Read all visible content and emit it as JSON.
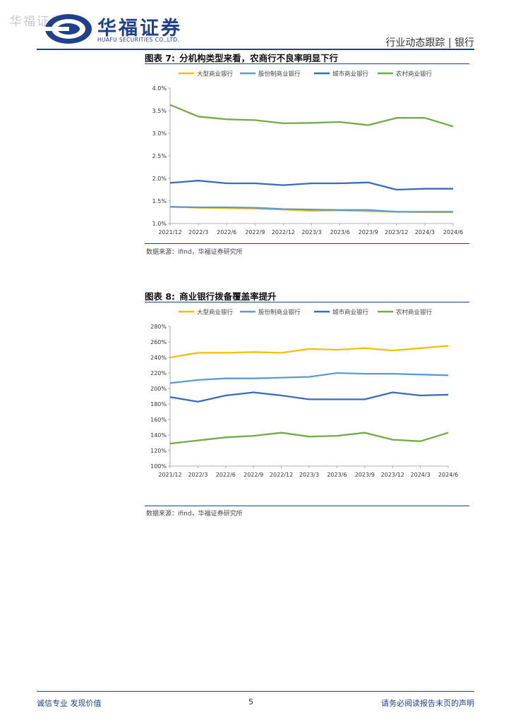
{
  "header": {
    "watermark": "华福证券",
    "logo_cn": "华福证券",
    "logo_en": "HUAFU SECURITIES CO.,LTD.",
    "right_text": "行业动态跟踪 | 银行"
  },
  "figures": [
    {
      "number": "图表 7:",
      "title": "分机构类型来看，农商行不良率明显下行",
      "source": "数据来源：ifind，华福证券研究所"
    },
    {
      "number": "图表 8:",
      "title": "商业银行拨备覆盖率提升",
      "source": "数据来源：ifind，华福证券研究所"
    }
  ],
  "chart_data": [
    {
      "type": "line",
      "categories": [
        "2021/12",
        "2022/3",
        "2022/6",
        "2022/9",
        "2022/12",
        "2023/3",
        "2023/6",
        "2023/9",
        "2023/12",
        "2024/3",
        "2024/6"
      ],
      "ylim": [
        1.0,
        4.0
      ],
      "y_ticks": [
        "1.0%",
        "1.5%",
        "2.0%",
        "2.5%",
        "3.0%",
        "3.5%",
        "4.0%"
      ],
      "legend_position": "top",
      "series": [
        {
          "name": "大型商业银行",
          "color": "#f5c000",
          "values": [
            1.37,
            1.35,
            1.34,
            1.33,
            1.31,
            1.28,
            1.29,
            1.27,
            1.26,
            1.25,
            1.25
          ]
        },
        {
          "name": "股份制商业银行",
          "color": "#5b9bd5",
          "values": [
            1.37,
            1.36,
            1.36,
            1.35,
            1.32,
            1.31,
            1.3,
            1.3,
            1.26,
            1.26,
            1.26
          ]
        },
        {
          "name": "城市商业银行",
          "color": "#3a6bbf",
          "values": [
            1.9,
            1.95,
            1.89,
            1.89,
            1.85,
            1.89,
            1.89,
            1.91,
            1.75,
            1.77,
            1.77
          ]
        },
        {
          "name": "农村商业银行",
          "color": "#70ad47",
          "values": [
            3.63,
            3.37,
            3.31,
            3.29,
            3.22,
            3.23,
            3.25,
            3.18,
            3.34,
            3.34,
            3.15
          ]
        }
      ]
    },
    {
      "type": "line",
      "categories": [
        "2021/12",
        "2022/3",
        "2022/6",
        "2022/9",
        "2022/12",
        "2023/3",
        "2023/6",
        "2023/9",
        "2023/12",
        "2024/3",
        "2024/6"
      ],
      "ylim": [
        100,
        280
      ],
      "y_ticks": [
        "100%",
        "120%",
        "140%",
        "160%",
        "180%",
        "200%",
        "220%",
        "240%",
        "260%",
        "280%"
      ],
      "legend_position": "top",
      "series": [
        {
          "name": "大型商业银行",
          "color": "#f5c000",
          "values": [
            240,
            246,
            246,
            247,
            246,
            251,
            250,
            252,
            249,
            252,
            255
          ]
        },
        {
          "name": "股份制商业银行",
          "color": "#5b9bd5",
          "values": [
            207,
            211,
            213,
            213,
            214,
            215,
            220,
            219,
            219,
            218,
            217
          ]
        },
        {
          "name": "城市商业银行",
          "color": "#3a6bbf",
          "values": [
            189,
            183,
            191,
            195,
            191,
            186,
            186,
            186,
            195,
            191,
            192
          ]
        },
        {
          "name": "农村商业银行",
          "color": "#70ad47",
          "values": [
            129,
            133,
            137,
            139,
            143,
            138,
            139,
            143,
            134,
            132,
            143
          ]
        }
      ]
    }
  ],
  "footer": {
    "left": "诚信专业 发现价值",
    "page": "5",
    "right": "请务必阅读报告末页的声明"
  }
}
